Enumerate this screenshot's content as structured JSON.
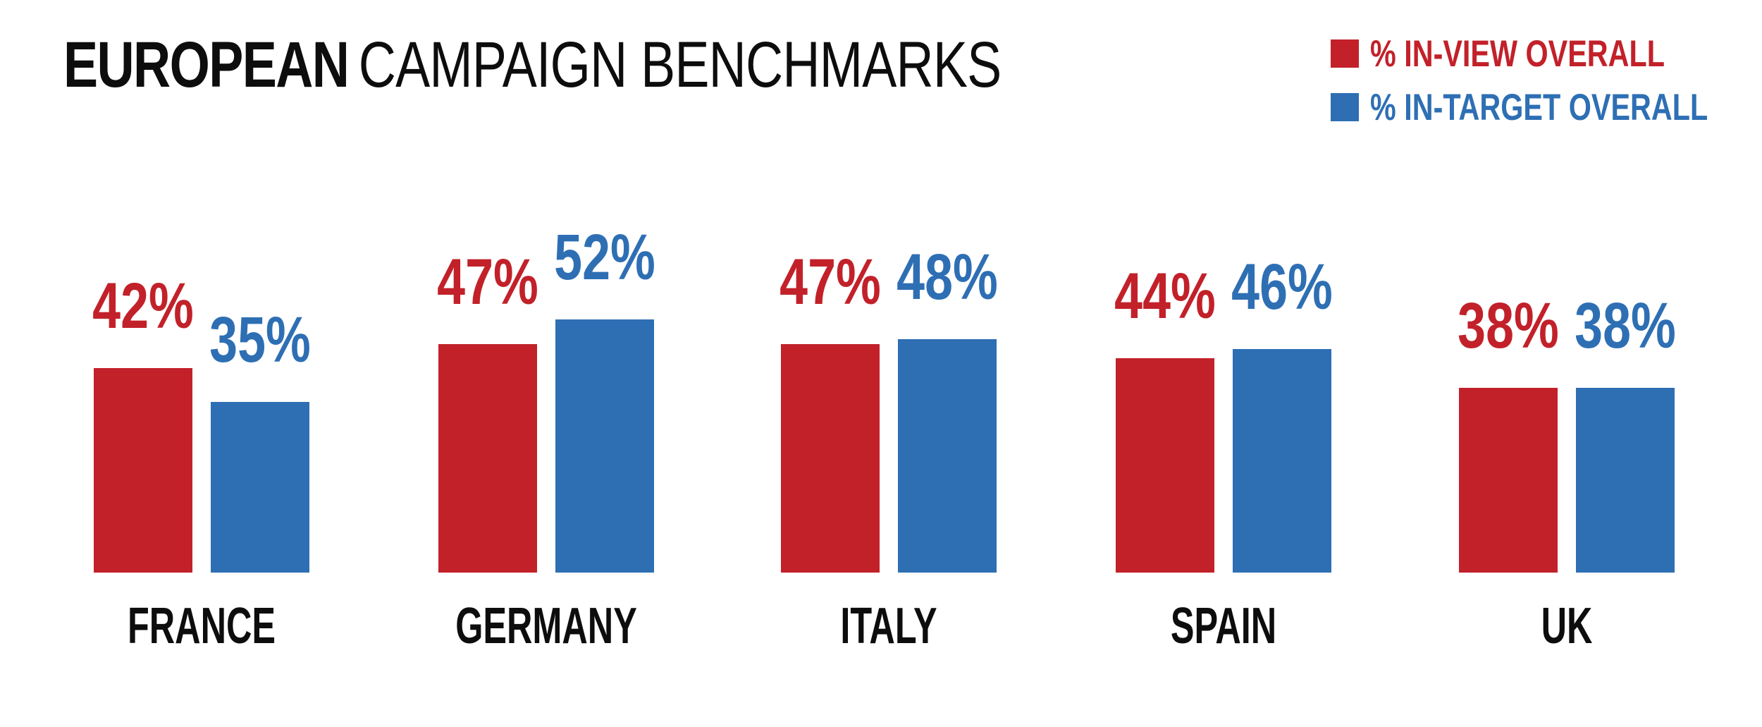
{
  "title": {
    "bold": "EUROPEAN",
    "regular": "CAMPAIGN BENCHMARKS"
  },
  "colors": {
    "in_view_red": "#C2212A",
    "in_target_blue": "#2E6FB4",
    "text_black": "#0D0D0D",
    "background": "#FFFFFF"
  },
  "chart_data": {
    "type": "bar",
    "title": "EUROPEAN CAMPAIGN BENCHMARKS",
    "categories": [
      "FRANCE",
      "GERMANY",
      "ITALY",
      "SPAIN",
      "UK"
    ],
    "series": [
      {
        "name": "% IN-VIEW OVERALL",
        "color": "#C2212A",
        "values": [
          42,
          47,
          47,
          44,
          38
        ]
      },
      {
        "name": "% IN-TARGET OVERALL",
        "color": "#2E6FB4",
        "values": [
          35,
          52,
          48,
          46,
          38
        ]
      }
    ],
    "value_suffix": "%",
    "data_labels": [
      "42%",
      "35%",
      "47%",
      "52%",
      "47%",
      "48%",
      "44%",
      "46%",
      "38%",
      "38%"
    ],
    "xlabel": "",
    "ylabel": "",
    "ylim": [
      0,
      60
    ],
    "grid": false,
    "axes_visible": false,
    "legend_position": "top-right"
  }
}
